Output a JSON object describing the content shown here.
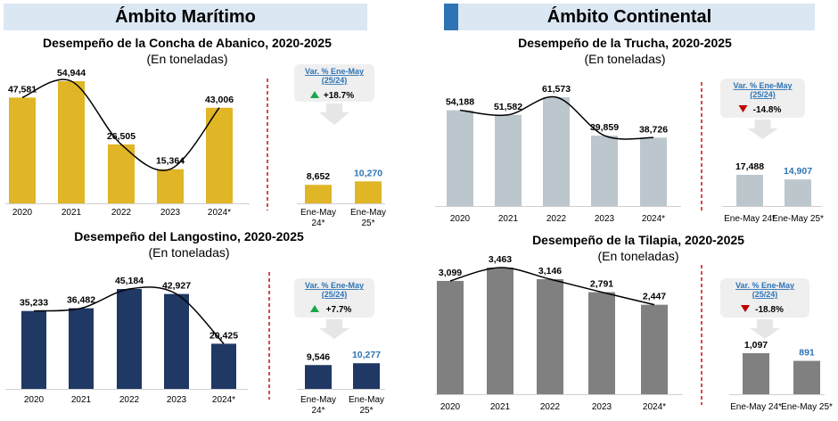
{
  "sections": {
    "left": "Ámbito Marítimo",
    "right": "Ámbito Continental"
  },
  "colors": {
    "header_bg": "#dbe7f3",
    "header_accent": "#2e74b5",
    "gold": "#e0b526",
    "navy": "#1f3864",
    "gray_light": "#bcc6cd",
    "gray_dark": "#808080",
    "blue_label": "#2e74b5",
    "up": "#1aa64a",
    "down": "#c00000",
    "divider": "#c00000"
  },
  "chart_data": [
    {
      "id": "concha",
      "type": "bar",
      "title": "Desempeño de la Concha de Abanico, 2020-2025",
      "subtitle": "(En toneladas)",
      "color_key": "gold",
      "categories": [
        "2020",
        "2021",
        "2022",
        "2023",
        "2024*"
      ],
      "values": [
        47581,
        54944,
        26505,
        15364,
        43006
      ],
      "labels": [
        "47,581",
        "54,944",
        "26,505",
        "15,364",
        "43,006"
      ],
      "trendline": true,
      "comparison": {
        "categories": [
          [
            "Ene-May",
            "24*"
          ],
          [
            "Ene-May",
            "25*"
          ]
        ],
        "values": [
          8652,
          10270
        ],
        "labels": [
          "8,652",
          "10,270"
        ]
      },
      "callout": {
        "title": "Var. % Ene-May (25/24)",
        "value": "+18.7%",
        "direction": "up"
      }
    },
    {
      "id": "trucha",
      "type": "bar",
      "title": "Desempeño de la Trucha, 2020-2025",
      "subtitle": "(En toneladas)",
      "color_key": "gray_light",
      "categories": [
        "2020",
        "2021",
        "2022",
        "2023",
        "2024*"
      ],
      "values": [
        54188,
        51582,
        61573,
        39859,
        38726
      ],
      "labels": [
        "54,188",
        "51,582",
        "61,573",
        "39,859",
        "38,726"
      ],
      "trendline": true,
      "comparison": {
        "categories": [
          [
            "Ene-May 24*"
          ],
          [
            "Ene-May 25*"
          ]
        ],
        "values": [
          17488,
          14907
        ],
        "labels": [
          "17,488",
          "14,907"
        ]
      },
      "callout": {
        "title": "Var. % Ene-May (25/24)",
        "value": "-14.8%",
        "direction": "down"
      }
    },
    {
      "id": "langostino",
      "type": "bar",
      "title": "Desempeño del Langostino, 2020-2025",
      "subtitle": "(En toneladas)",
      "color_key": "navy",
      "categories": [
        "2020",
        "2021",
        "2022",
        "2023",
        "2024*"
      ],
      "values": [
        35233,
        36482,
        45184,
        42927,
        20425
      ],
      "labels": [
        "35,233",
        "36,482",
        "45,184",
        "42,927",
        "20,425"
      ],
      "trendline": true,
      "comparison": {
        "categories": [
          [
            "Ene-May",
            "24*"
          ],
          [
            "Ene-May",
            "25*"
          ]
        ],
        "values": [
          9546,
          10277
        ],
        "labels": [
          "9,546",
          "10,277"
        ]
      },
      "callout": {
        "title": "Var. % Ene-May (25/24)",
        "value": "+7.7%",
        "direction": "up"
      }
    },
    {
      "id": "tilapia",
      "type": "bar",
      "title": "Desempeño de la Tilapia, 2020-2025",
      "subtitle": "(En toneladas)",
      "color_key": "gray_dark",
      "categories": [
        "2020",
        "2021",
        "2022",
        "2023",
        "2024*"
      ],
      "values": [
        3099,
        3463,
        3146,
        2791,
        2447
      ],
      "labels": [
        "3,099",
        "3,463",
        "3,146",
        "2,791",
        "2,447"
      ],
      "trendline": true,
      "comparison": {
        "categories": [
          [
            "Ene-May 24*"
          ],
          [
            "Ene-May 25*"
          ]
        ],
        "values": [
          1097,
          891
        ],
        "labels": [
          "1,097",
          "891"
        ]
      },
      "callout": {
        "title": "Var. % Ene-May (25/24)",
        "value": "-18.8%",
        "direction": "down"
      }
    }
  ]
}
